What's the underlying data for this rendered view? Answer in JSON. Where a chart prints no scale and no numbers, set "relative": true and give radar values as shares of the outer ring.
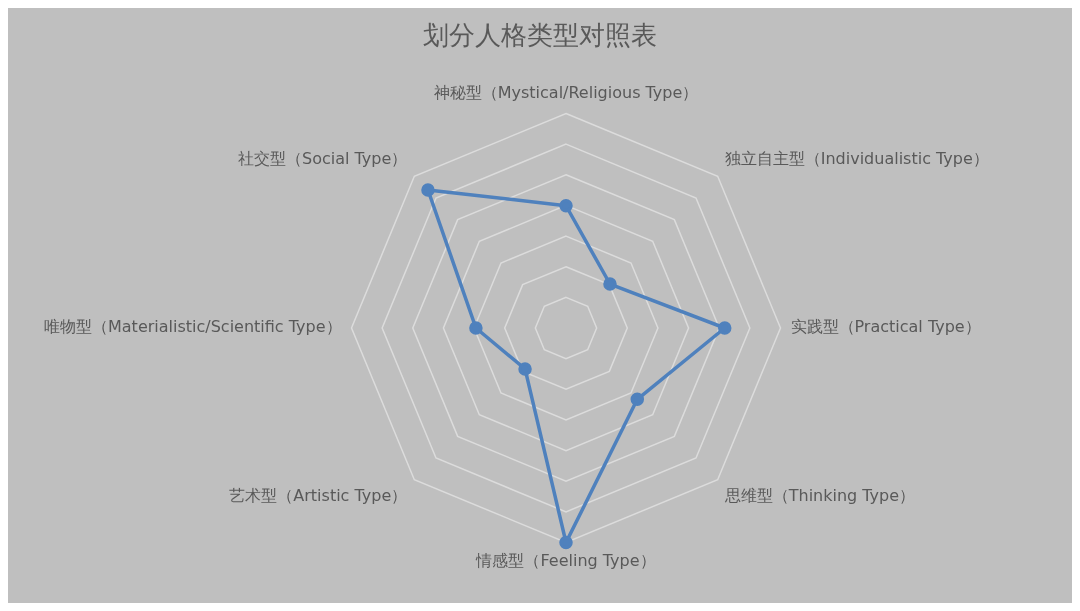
{
  "chart_data": {
    "type": "radar",
    "title": "划分人格类型对照表",
    "relative": true,
    "grid": true,
    "marker": "circle",
    "legend": false,
    "categories": [
      "神秘型（Mystical/Religious Type）",
      "独立自主型（Individualistic Type）",
      "实践型（Practical Type）",
      "思维型（Thinking Type）",
      "情感型（Feeling Type）",
      "艺术型（Artistic Type）",
      "唯物型（Materialistic/Scientific Type）",
      "社交型（Social Type）"
    ],
    "series": [
      {
        "color": "#4f81bd",
        "values": [
          0.57,
          0.29,
          0.74,
          0.47,
          1,
          0.27,
          0.42,
          0.91
        ]
      }
    ]
  }
}
